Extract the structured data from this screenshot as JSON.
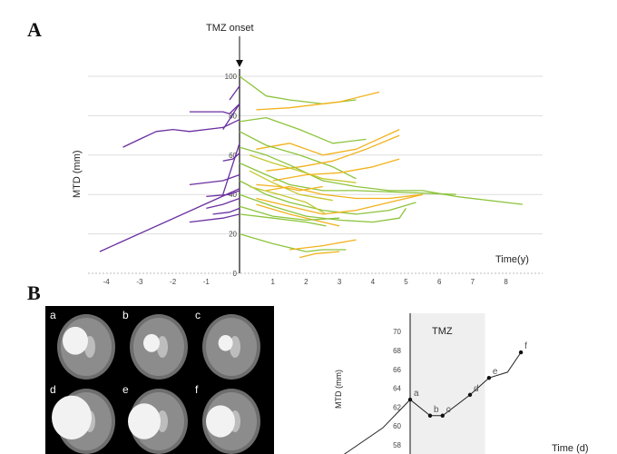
{
  "figure": {
    "panel_a_label": "A",
    "panel_b_label": "B",
    "mri_labels": [
      "a",
      "b",
      "c",
      "d",
      "e",
      "f"
    ]
  },
  "chart_data": [
    {
      "type": "line",
      "title": "",
      "annotation": "TMZ onset",
      "xlabel": "Time(y)",
      "ylabel": "MTD (mm)",
      "xlim": [
        -4.5,
        8.5
      ],
      "ylim": [
        0,
        105
      ],
      "xticks": [
        "-4",
        "-3",
        "-2",
        "-1",
        "1",
        "2",
        "3",
        "4",
        "5",
        "6",
        "7",
        "8"
      ],
      "yticks": [
        "0",
        "20",
        "40",
        "60",
        "80",
        "100"
      ],
      "grid": "horizontal",
      "colors": {
        "pre_tmz": "#6a2fa0",
        "on_tmz_green": "#8cc43c",
        "on_tmz_yellow": "#f2b21c",
        "on_tmz_olive": "#c4c82e"
      },
      "series": [
        {
          "group": "pre_tmz",
          "points": [
            [
              -4.2,
              11
            ],
            [
              0,
              43
            ]
          ]
        },
        {
          "group": "pre_tmz",
          "points": [
            [
              -3.5,
              64
            ],
            [
              -3.0,
              68
            ],
            [
              -2.5,
              72
            ],
            [
              -2.0,
              73
            ],
            [
              -1.5,
              72
            ],
            [
              -0.5,
              74
            ],
            [
              0,
              78
            ]
          ]
        },
        {
          "group": "pre_tmz",
          "points": [
            [
              -1.5,
              82
            ],
            [
              -0.5,
              82
            ],
            [
              -0.3,
              81
            ],
            [
              0,
              86
            ]
          ]
        },
        {
          "group": "pre_tmz",
          "points": [
            [
              -0.5,
              73
            ],
            [
              0,
              86
            ]
          ]
        },
        {
          "group": "pre_tmz",
          "points": [
            [
              -0.3,
              88
            ],
            [
              0,
              95
            ]
          ]
        },
        {
          "group": "pre_tmz",
          "points": [
            [
              -0.5,
              40
            ],
            [
              0,
              66
            ]
          ]
        },
        {
          "group": "pre_tmz",
          "points": [
            [
              -0.5,
              57
            ],
            [
              -0.2,
              58
            ],
            [
              0,
              61
            ]
          ]
        },
        {
          "group": "pre_tmz",
          "points": [
            [
              -1.5,
              45
            ],
            [
              -0.5,
              47
            ],
            [
              0,
              50
            ]
          ]
        },
        {
          "group": "pre_tmz",
          "points": [
            [
              -1.0,
              39
            ],
            [
              -0.3,
              40
            ],
            [
              0,
              42
            ]
          ]
        },
        {
          "group": "pre_tmz",
          "points": [
            [
              -1.0,
              33
            ],
            [
              -0.5,
              35
            ],
            [
              0,
              38
            ]
          ]
        },
        {
          "group": "pre_tmz",
          "points": [
            [
              -0.8,
              30
            ],
            [
              -0.3,
              31
            ],
            [
              0,
              33
            ]
          ]
        },
        {
          "group": "pre_tmz",
          "points": [
            [
              -1.5,
              26
            ],
            [
              -0.5,
              28
            ],
            [
              0,
              30
            ]
          ]
        },
        {
          "group": "on_tmz_green",
          "points": [
            [
              0,
              100
            ],
            [
              0.8,
              90
            ],
            [
              1.5,
              88
            ],
            [
              2.5,
              86
            ],
            [
              3.5,
              88
            ]
          ]
        },
        {
          "group": "on_tmz_yellow",
          "points": [
            [
              0.5,
              83
            ],
            [
              1.5,
              84
            ],
            [
              3.0,
              87
            ],
            [
              4.2,
              92
            ]
          ]
        },
        {
          "group": "on_tmz_green",
          "points": [
            [
              0,
              77
            ],
            [
              0.8,
              79
            ],
            [
              1.8,
              73
            ],
            [
              2.8,
              66
            ],
            [
              3.8,
              68
            ]
          ]
        },
        {
          "group": "on_tmz_yellow",
          "points": [
            [
              0.5,
              63
            ],
            [
              1.5,
              66
            ],
            [
              2.5,
              60
            ],
            [
              3.5,
              63
            ],
            [
              4.8,
              73
            ]
          ]
        },
        {
          "group": "on_tmz_green",
          "points": [
            [
              0,
              72
            ],
            [
              0.8,
              65
            ],
            [
              1.8,
              60
            ],
            [
              2.8,
              54
            ],
            [
              3.5,
              48
            ]
          ]
        },
        {
          "group": "on_tmz_yellow",
          "points": [
            [
              0.8,
              52
            ],
            [
              1.8,
              54
            ],
            [
              2.8,
              57
            ],
            [
              3.8,
              63
            ],
            [
              4.8,
              70
            ]
          ]
        },
        {
          "group": "on_tmz_green",
          "points": [
            [
              0,
              64
            ],
            [
              0.8,
              60
            ],
            [
              1.5,
              55
            ],
            [
              2.5,
              47
            ],
            [
              3.5,
              44
            ],
            [
              4.5,
              42
            ],
            [
              5.5,
              42
            ],
            [
              6.5,
              39
            ],
            [
              8.5,
              35
            ]
          ]
        },
        {
          "group": "on_tmz_olive",
          "points": [
            [
              0.3,
              60
            ],
            [
              1.0,
              56
            ],
            [
              1.8,
              52
            ],
            [
              2.5,
              48
            ],
            [
              3.5,
              46
            ]
          ]
        },
        {
          "group": "on_tmz_yellow",
          "points": [
            [
              1.0,
              47
            ],
            [
              2.0,
              50
            ],
            [
              3.0,
              51
            ],
            [
              4.0,
              54
            ],
            [
              4.8,
              58
            ]
          ]
        },
        {
          "group": "on_tmz_green",
          "points": [
            [
              0,
              56
            ],
            [
              0.8,
              50
            ],
            [
              1.5,
              45
            ],
            [
              2.5,
              42
            ],
            [
              3.5,
              42
            ],
            [
              5.0,
              41
            ],
            [
              6.5,
              40
            ]
          ]
        },
        {
          "group": "on_tmz_yellow",
          "points": [
            [
              0.8,
              42
            ],
            [
              1.5,
              44
            ],
            [
              2.5,
              40
            ],
            [
              3.5,
              38
            ],
            [
              4.5,
              38
            ],
            [
              5.5,
              40
            ]
          ]
        },
        {
          "group": "on_tmz_olive",
          "points": [
            [
              0.3,
              52
            ],
            [
              1.0,
              46
            ],
            [
              1.8,
              40
            ],
            [
              2.8,
              37
            ]
          ]
        },
        {
          "group": "on_tmz_green",
          "points": [
            [
              0,
              47
            ],
            [
              0.8,
              40
            ],
            [
              1.5,
              36
            ],
            [
              2.5,
              32
            ],
            [
              3.5,
              30
            ],
            [
              4.5,
              32
            ],
            [
              5.3,
              36
            ]
          ]
        },
        {
          "group": "on_tmz_yellow",
          "points": [
            [
              0.5,
              38
            ],
            [
              1.5,
              34
            ],
            [
              2.5,
              30
            ],
            [
              3.5,
              32
            ],
            [
              4.5,
              36
            ],
            [
              5.5,
              40
            ]
          ]
        },
        {
          "group": "on_tmz_green",
          "points": [
            [
              0,
              40
            ],
            [
              1.0,
              34
            ],
            [
              2.0,
              29
            ],
            [
              3.0,
              27
            ],
            [
              4.0,
              26
            ],
            [
              4.8,
              28
            ],
            [
              5.0,
              33
            ]
          ]
        },
        {
          "group": "on_tmz_yellow",
          "points": [
            [
              0.5,
              35
            ],
            [
              1.5,
              30
            ],
            [
              2.5,
              26
            ],
            [
              3.0,
              24
            ]
          ]
        },
        {
          "group": "on_tmz_green",
          "points": [
            [
              0,
              34
            ],
            [
              1.0,
              29
            ],
            [
              2.0,
              27
            ],
            [
              3.0,
              28
            ]
          ]
        },
        {
          "group": "on_tmz_green",
          "points": [
            [
              0,
              20
            ],
            [
              1.0,
              15
            ],
            [
              1.5,
              13
            ],
            [
              2.0,
              11
            ],
            [
              2.5,
              12
            ],
            [
              3.2,
              12
            ]
          ]
        },
        {
          "group": "on_tmz_yellow",
          "points": [
            [
              1.5,
              12
            ],
            [
              2.5,
              14
            ],
            [
              3.5,
              17
            ]
          ]
        },
        {
          "group": "on_tmz_yellow",
          "points": [
            [
              1.8,
              8
            ],
            [
              2.3,
              10
            ],
            [
              3.0,
              11
            ]
          ]
        },
        {
          "group": "on_tmz_olive",
          "points": [
            [
              0.3,
              44
            ],
            [
              1.2,
              40
            ],
            [
              2.0,
              36
            ],
            [
              2.6,
              30
            ]
          ]
        },
        {
          "group": "on_tmz_yellow",
          "points": [
            [
              0.5,
              45
            ],
            [
              1.2,
              44
            ],
            [
              1.8,
              42
            ],
            [
              2.5,
              44
            ]
          ]
        },
        {
          "group": "on_tmz_green",
          "points": [
            [
              0,
              30
            ],
            [
              1.0,
              28
            ],
            [
              2.0,
              26
            ],
            [
              2.6,
              24
            ]
          ]
        }
      ]
    },
    {
      "type": "line",
      "title": "",
      "annotation": "TMZ",
      "xlabel": "Time (d)",
      "ylabel": "MTD (mm)",
      "ylim": [
        57.4,
        70
      ],
      "yticks": [
        "58",
        "60",
        "62",
        "64",
        "66",
        "68",
        "70"
      ],
      "shaded_region": "TMZ",
      "points": [
        {
          "label": "",
          "t": -160,
          "y": 56
        },
        {
          "label": "",
          "t": -55,
          "y": 59.8
        },
        {
          "label": "a",
          "t": 0,
          "y": 62.8
        },
        {
          "label": "b",
          "t": 40,
          "y": 61.1
        },
        {
          "label": "c",
          "t": 65,
          "y": 61.1
        },
        {
          "label": "d",
          "t": 120,
          "y": 63.3
        },
        {
          "label": "e",
          "t": 158,
          "y": 65.1
        },
        {
          "label": "",
          "t": 195,
          "y": 65.7
        },
        {
          "label": "f",
          "t": 222,
          "y": 67.8
        }
      ],
      "tmz_start": 0,
      "tmz_end": 150
    }
  ]
}
